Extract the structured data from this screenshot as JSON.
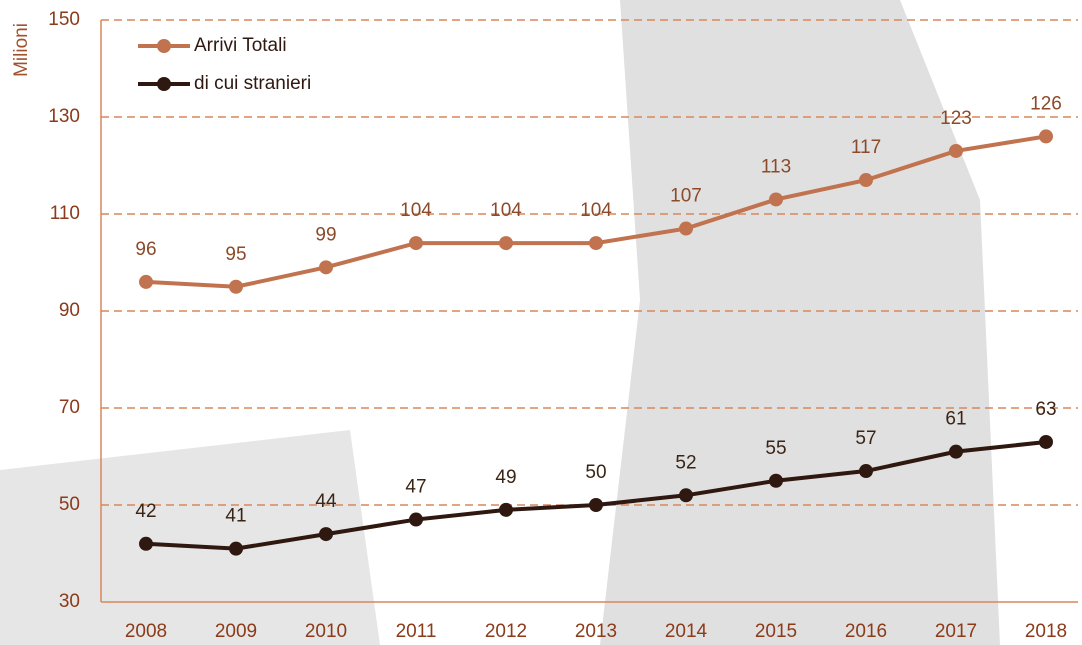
{
  "chart_data": {
    "type": "line",
    "y_label": "Milioni",
    "categories": [
      "2008",
      "2009",
      "2010",
      "2011",
      "2012",
      "2013",
      "2014",
      "2015",
      "2016",
      "2017",
      "2018"
    ],
    "series": [
      {
        "name": "Arrivi Totali",
        "color": "#c0734e",
        "values": [
          96,
          95,
          99,
          104,
          104,
          104,
          107,
          113,
          117,
          123,
          126
        ]
      },
      {
        "name": "di cui stranieri",
        "color": "#2e1810",
        "values": [
          42,
          41,
          44,
          47,
          49,
          50,
          52,
          55,
          57,
          61,
          63
        ]
      }
    ],
    "ylim": [
      30,
      150
    ],
    "yticks": [
      30,
      50,
      70,
      90,
      110,
      130,
      150
    ],
    "grid": true,
    "legend": "top-left"
  }
}
